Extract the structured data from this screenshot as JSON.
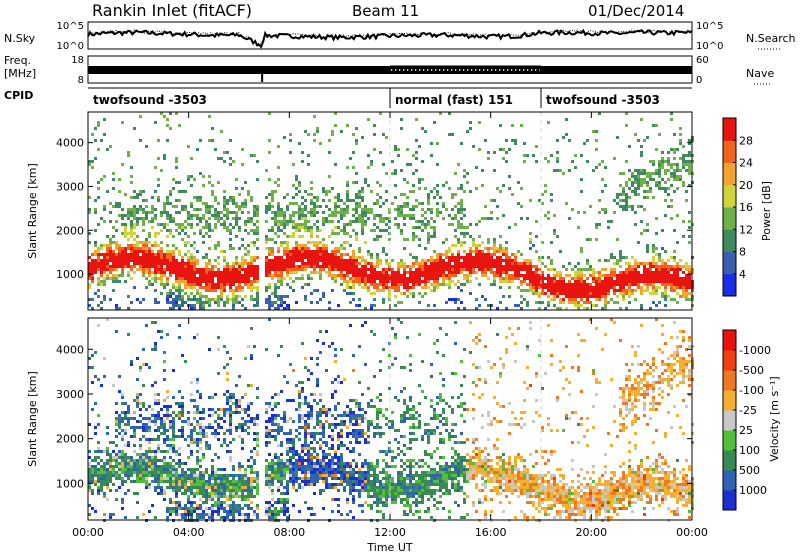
{
  "header": {
    "radar": "Rankin Inlet (fitACF)",
    "beam": "Beam 11",
    "date": "01/Dec/2014"
  },
  "chart_data": [
    {
      "type": "line",
      "title": "",
      "left_label": "N.Sky",
      "right_label": "N.Search",
      "left_ticks": [
        "10^5",
        "10^0"
      ],
      "right_ticks": [
        "10^5",
        "10^0"
      ],
      "xlim": [
        0,
        24
      ],
      "profile_hours": [
        0,
        1,
        2,
        3,
        4,
        5,
        6,
        6.9,
        7,
        8,
        9,
        10,
        11,
        12,
        13,
        14,
        15,
        16,
        17,
        18,
        19,
        20,
        21,
        22,
        23,
        24
      ],
      "profile_level": [
        0.55,
        0.6,
        0.62,
        0.58,
        0.55,
        0.5,
        0.52,
        0.1,
        0.5,
        0.48,
        0.45,
        0.42,
        0.45,
        0.48,
        0.5,
        0.52,
        0.5,
        0.45,
        0.48,
        0.6,
        0.62,
        0.6,
        0.58,
        0.62,
        0.6,
        0.62
      ]
    },
    {
      "type": "line",
      "title": "",
      "left_label": "Freq.",
      "left_unit": "[MHz]",
      "right_label": "Nave",
      "left_ticks": [
        "18",
        "8"
      ],
      "right_ticks": [
        "60",
        "0"
      ],
      "xlim": [
        0,
        24
      ],
      "nave_dotted_spans": [
        [
          12.05,
          17.95
        ]
      ]
    },
    {
      "type": "table",
      "label": "CPID",
      "segments": [
        {
          "start": 0,
          "end": 12,
          "name": "twofsound -3503"
        },
        {
          "start": 12,
          "end": 18,
          "name": "normal (fast) 151"
        },
        {
          "start": 18,
          "end": 24,
          "name": "twofsound -3503"
        }
      ]
    },
    {
      "type": "heatmap",
      "title": "",
      "ylabel": "Slant Range [km]",
      "yticks": [
        1000,
        2000,
        3000,
        4000
      ],
      "ylim": [
        180,
        4700
      ],
      "xlim": [
        0,
        24
      ],
      "colorbar": {
        "label": "Power [dB]",
        "ticks": [
          "4",
          "8",
          "12",
          "16",
          "20",
          "24",
          "28"
        ],
        "colors": [
          "#1a2ce8",
          "#3a5fb0",
          "#3f8a5e",
          "#6fb04a",
          "#cfd43a",
          "#f2a430",
          "#f06420",
          "#e81410"
        ]
      }
    },
    {
      "type": "heatmap",
      "title": "",
      "ylabel": "Slant Range [km]",
      "xlabel": "Time UT",
      "yticks": [
        1000,
        2000,
        3000,
        4000
      ],
      "ylim": [
        180,
        4700
      ],
      "xlim": [
        0,
        24
      ],
      "xticks": [
        "00:00",
        "04:00",
        "08:00",
        "12:00",
        "16:00",
        "20:00",
        "00:00"
      ],
      "colorbar": {
        "label": "Velocity [m s⁻¹]",
        "ticks": [
          "1000",
          "500",
          "100",
          "25",
          "-25",
          "-100",
          "-500",
          "-1000"
        ],
        "colors": [
          "#1c2fd0",
          "#2f63b4",
          "#3a8a56",
          "#52bf3a",
          "#c8c8c8",
          "#f5b030",
          "#f07820",
          "#f04010",
          "#e81010"
        ]
      }
    }
  ]
}
